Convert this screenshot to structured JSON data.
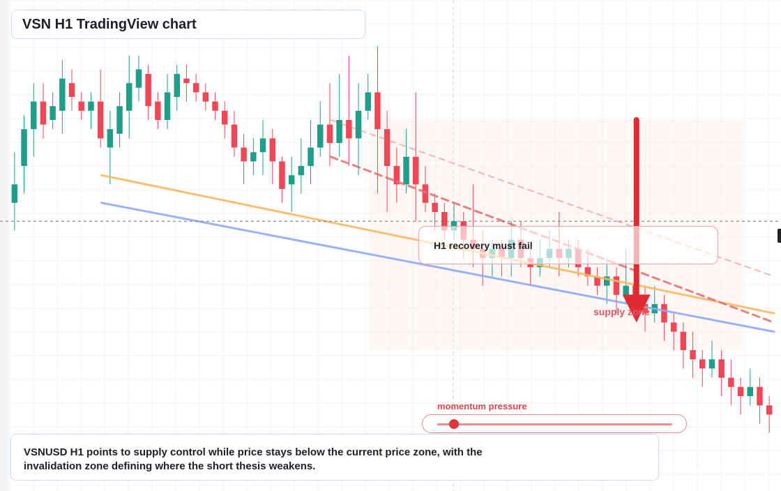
{
  "header": {
    "title": "VSN H1 TradingView chart"
  },
  "annotations": {
    "recovery_note": "H1 recovery must fail",
    "supply_zone_label": "supply zone",
    "momentum_label": "momentum pressure",
    "momentum_level": 0.07
  },
  "summary": {
    "line1": "VSNUSD H1 points to supply control while price stays below the current price zone, with the",
    "line2": "invalidation zone defining where the short thesis weakens."
  },
  "colors": {
    "bull": "#1f9e89",
    "bear": "#ef4756",
    "resistance_line": "#f7b960",
    "support_line": "#90aaf0",
    "dashed_trend": "#e57373",
    "arrow": "#e02b32",
    "supply_zone_fill": "#fde8e2"
  },
  "chart_data": {
    "type": "candlestick",
    "timeframe": "H1",
    "symbol": "VSNUSD",
    "price_range": [
      0,
      100
    ],
    "candles": [
      [
        62,
        66,
        56,
        73
      ],
      [
        70,
        78,
        64,
        81
      ],
      [
        78,
        84,
        72,
        88
      ],
      [
        84,
        79,
        76,
        88
      ],
      [
        80,
        83,
        78,
        86
      ],
      [
        82,
        89,
        77,
        93
      ],
      [
        88,
        85,
        82,
        91
      ],
      [
        84,
        82,
        80,
        86
      ],
      [
        82,
        84,
        78,
        86
      ],
      [
        84,
        76,
        74,
        91
      ],
      [
        74,
        78,
        66,
        82
      ],
      [
        77,
        83,
        74,
        86
      ],
      [
        82,
        88,
        76,
        94
      ],
      [
        87,
        91,
        84,
        94
      ],
      [
        90,
        83,
        80,
        92
      ],
      [
        84,
        80,
        78,
        86
      ],
      [
        80,
        86,
        78,
        90
      ],
      [
        85,
        90,
        82,
        92
      ],
      [
        89,
        88,
        84,
        92
      ],
      [
        88,
        86,
        84,
        90
      ],
      [
        86,
        84,
        82,
        88
      ],
      [
        84,
        82,
        80,
        86
      ],
      [
        82,
        79,
        76,
        84
      ],
      [
        79,
        74,
        72,
        82
      ],
      [
        74,
        71,
        66,
        77
      ],
      [
        71,
        73,
        68,
        76
      ],
      [
        73,
        76,
        68,
        80
      ],
      [
        76,
        71,
        66,
        78
      ],
      [
        71,
        65,
        62,
        72
      ],
      [
        66,
        68,
        60,
        72
      ],
      [
        68,
        70,
        64,
        76
      ],
      [
        70,
        74,
        66,
        80
      ],
      [
        74,
        79,
        72,
        84
      ],
      [
        79,
        75,
        70,
        88
      ],
      [
        75,
        80,
        72,
        90
      ],
      [
        80,
        76,
        70,
        94
      ],
      [
        76,
        82,
        68,
        88
      ],
      [
        82,
        86,
        80,
        90
      ],
      [
        86,
        78,
        64,
        96
      ],
      [
        78,
        70,
        60,
        82
      ],
      [
        70,
        66,
        62,
        74
      ],
      [
        66,
        72,
        64,
        78
      ],
      [
        72,
        66,
        58,
        86
      ],
      [
        66,
        62,
        60,
        70
      ],
      [
        62,
        60,
        56,
        64
      ],
      [
        60,
        56,
        54,
        62
      ],
      [
        56,
        58,
        54,
        62
      ],
      [
        58,
        54,
        50,
        60
      ],
      [
        54,
        52,
        48,
        66
      ],
      [
        52,
        50,
        44,
        56
      ],
      [
        50,
        52,
        46,
        54
      ],
      [
        52,
        50,
        46,
        54
      ],
      [
        50,
        54,
        46,
        58
      ],
      [
        54,
        50,
        48,
        58
      ],
      [
        50,
        48,
        44,
        52
      ],
      [
        48,
        50,
        46,
        54
      ],
      [
        50,
        52,
        48,
        56
      ],
      [
        52,
        50,
        46,
        60
      ],
      [
        50,
        52,
        48,
        54
      ],
      [
        52,
        48,
        46,
        54
      ],
      [
        48,
        46,
        44,
        52
      ],
      [
        46,
        44,
        42,
        48
      ],
      [
        44,
        46,
        40,
        50
      ],
      [
        46,
        42,
        38,
        48
      ],
      [
        42,
        44,
        40,
        52
      ],
      [
        44,
        40,
        38,
        46
      ],
      [
        40,
        38,
        34,
        44
      ],
      [
        38,
        40,
        36,
        44
      ],
      [
        40,
        36,
        32,
        42
      ],
      [
        36,
        34,
        30,
        38
      ],
      [
        34,
        30,
        26,
        36
      ],
      [
        30,
        28,
        24,
        34
      ],
      [
        28,
        26,
        22,
        30
      ],
      [
        26,
        28,
        24,
        32
      ],
      [
        28,
        24,
        20,
        30
      ],
      [
        24,
        22,
        18,
        28
      ],
      [
        22,
        20,
        16,
        24
      ],
      [
        20,
        22,
        18,
        26
      ],
      [
        22,
        18,
        14,
        24
      ],
      [
        18,
        16,
        12,
        20
      ]
    ],
    "lines": [
      {
        "name": "",
        "kind": "resistance",
        "from": [
          0.12,
          68
        ],
        "to": [
          1.0,
          38
        ]
      },
      {
        "name": "",
        "kind": "support",
        "from": [
          0.12,
          62
        ],
        "to": [
          1.0,
          34
        ]
      },
      {
        "name": "",
        "kind": "dashed-trend",
        "from": [
          0.42,
          72
        ],
        "to": [
          1.0,
          36
        ]
      },
      {
        "name": "",
        "kind": "dashed-trend-light",
        "from": [
          0.42,
          80
        ],
        "to": [
          1.0,
          46
        ]
      }
    ],
    "current_price": 58,
    "supply_zone": [
      30,
      80
    ],
    "arrow": {
      "from_price": 80,
      "to_price": 36
    },
    "grid": true,
    "legend": "none"
  }
}
